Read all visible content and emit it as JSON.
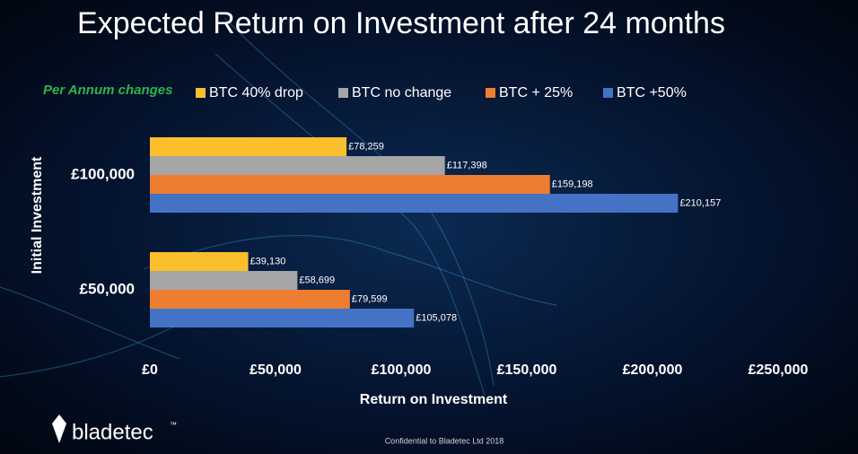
{
  "chart_data": {
    "type": "bar",
    "orientation": "horizontal",
    "title": "Expected Return on Investment after 24 months",
    "annotation": "Per Annum changes",
    "xlabel": "Return on Investment",
    "ylabel": "Initial Investment",
    "categories": [
      "£100,000",
      "£50,000"
    ],
    "series": [
      {
        "name": "BTC 40% drop",
        "color": "#fbbf2e",
        "values": [
          78259,
          39130
        ],
        "value_labels": [
          "£78,259",
          "£39,130"
        ]
      },
      {
        "name": "BTC no change",
        "color": "#a5a5a5",
        "values": [
          117398,
          58699
        ],
        "value_labels": [
          "£117,398",
          "£58,699"
        ]
      },
      {
        "name": "BTC + 25%",
        "color": "#ed7d31",
        "values": [
          159198,
          79599
        ],
        "value_labels": [
          "£159,198",
          "£79,599"
        ]
      },
      {
        "name": "BTC +50%",
        "color": "#4472c4",
        "values": [
          210157,
          105078
        ],
        "value_labels": [
          "£210,157",
          "£105,078"
        ]
      }
    ],
    "xlim": [
      0,
      250000
    ],
    "xticks": [
      {
        "value": 0,
        "label": "£0"
      },
      {
        "value": 50000,
        "label": "£50,000"
      },
      {
        "value": 100000,
        "label": "£100,000"
      },
      {
        "value": 150000,
        "label": "£150,000"
      },
      {
        "value": 200000,
        "label": "£200,000"
      },
      {
        "value": 250000,
        "label": "£250,000"
      }
    ],
    "grid": false,
    "legend": "top"
  },
  "footer": "Confidential to Bladetec Ltd 2018",
  "logo": {
    "name": "bladetec",
    "mark": "™"
  }
}
